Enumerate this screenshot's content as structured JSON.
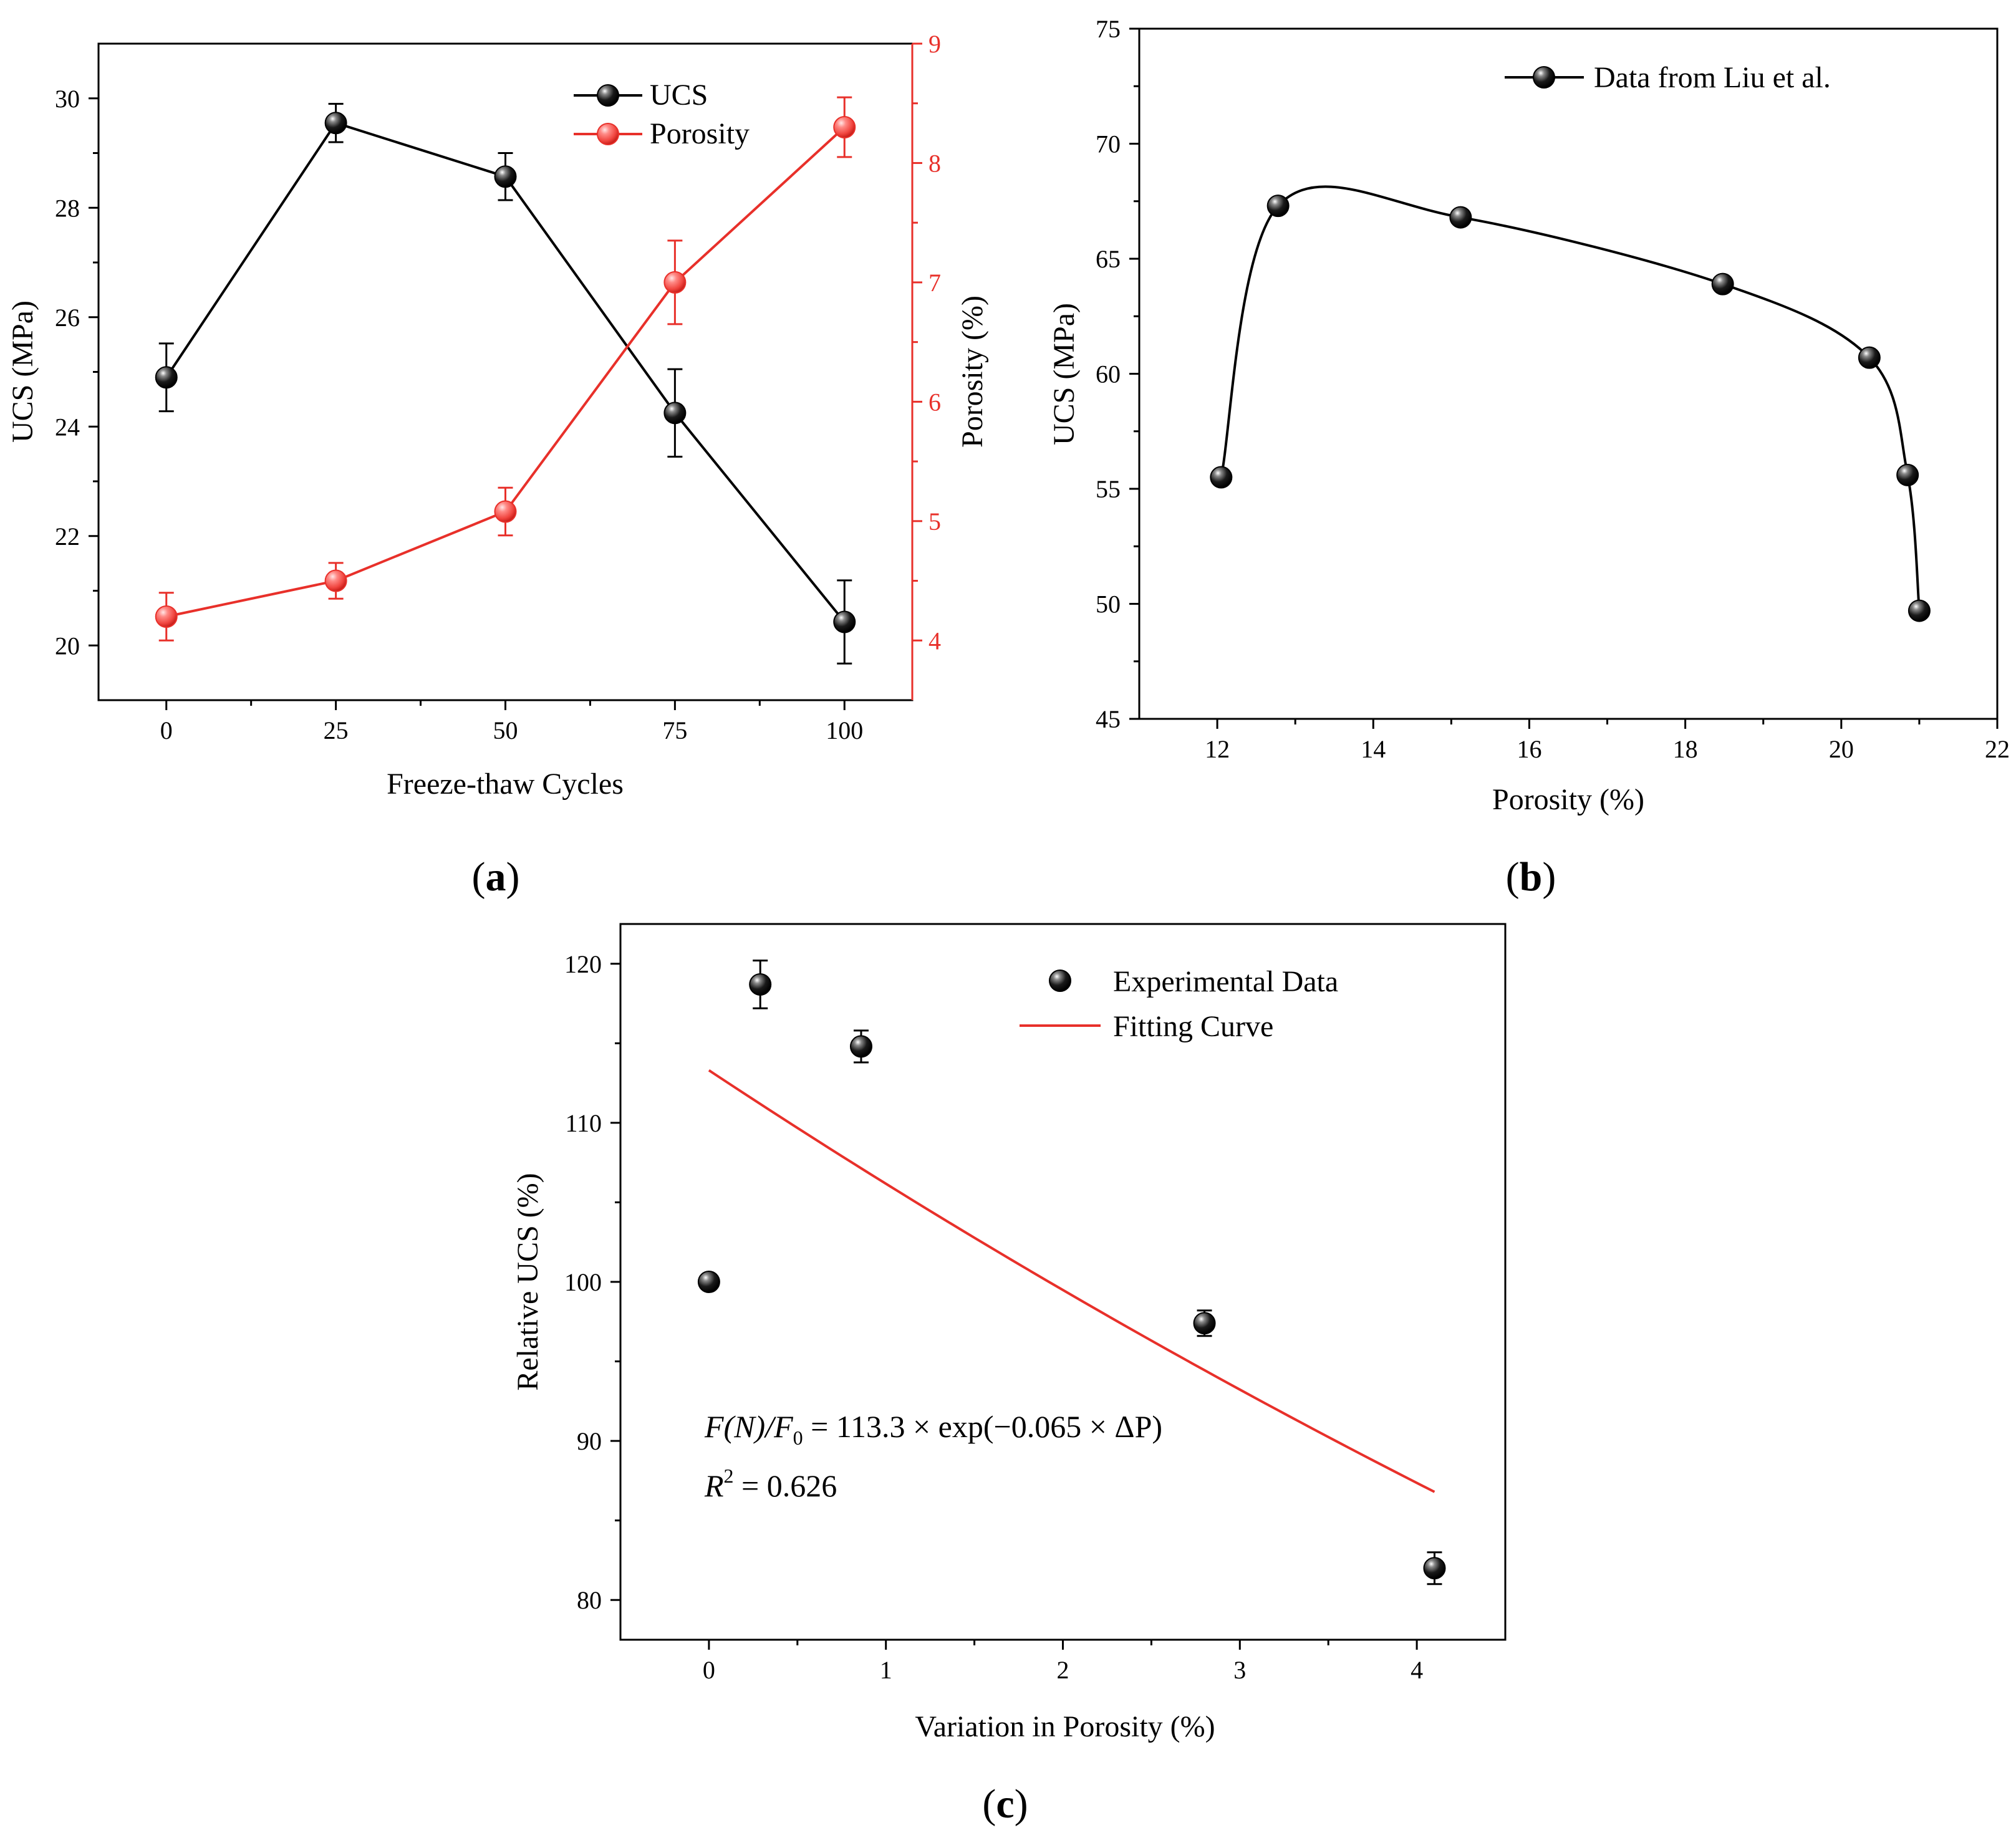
{
  "colors": {
    "black": "#000000",
    "red": "#e8302a",
    "ucs": "#000000",
    "porosity": "#e8302a",
    "fit": "#e8302a"
  },
  "panels": {
    "a": {
      "label_open": "(",
      "label_letter": "a",
      "label_close": ")"
    },
    "b": {
      "label_open": "(",
      "label_letter": "b",
      "label_close": ")"
    },
    "c": {
      "label_open": "(",
      "label_letter": "c",
      "label_close": ")"
    }
  },
  "chart_data": [
    {
      "id": "a",
      "type": "line",
      "xlabel": "Freeze-thaw Cycles",
      "ylabel": "UCS (MPa)",
      "y2label": "Porosity (%)",
      "xlim": [
        -10,
        110
      ],
      "xticks": [
        0,
        25,
        50,
        75,
        100
      ],
      "xtick_labels": [
        "0",
        "25",
        "50",
        "75",
        "100"
      ],
      "ylim": [
        19,
        31
      ],
      "yticks": [
        20,
        22,
        24,
        26,
        28,
        30
      ],
      "ytick_labels": [
        "20",
        "22",
        "24",
        "26",
        "28",
        "30"
      ],
      "y2lim": [
        3.5,
        9
      ],
      "y2ticks": [
        4,
        5,
        6,
        7,
        8,
        9
      ],
      "y2tick_labels": [
        "4",
        "5",
        "6",
        "7",
        "8",
        "9"
      ],
      "legend_position": "top-right",
      "series": [
        {
          "name": "UCS",
          "axis": "left",
          "color": "#000000",
          "x": [
            0,
            25,
            50,
            75,
            100
          ],
          "y": [
            24.9,
            29.55,
            28.57,
            24.25,
            20.43
          ],
          "err": [
            0.62,
            0.35,
            0.43,
            0.8,
            0.76
          ]
        },
        {
          "name": "Porosity",
          "axis": "right",
          "color": "#e8302a",
          "x": [
            0,
            25,
            50,
            75,
            100
          ],
          "y": [
            4.2,
            4.5,
            5.08,
            7.0,
            8.3
          ],
          "err": [
            0.2,
            0.15,
            0.2,
            0.35,
            0.25
          ]
        }
      ]
    },
    {
      "id": "b",
      "type": "line",
      "xlabel": "Porosity (%)",
      "ylabel": "UCS (MPa)",
      "xlim": [
        11,
        22
      ],
      "xticks": [
        12,
        14,
        16,
        18,
        20,
        22
      ],
      "xtick_labels": [
        "12",
        "14",
        "16",
        "18",
        "20",
        "22"
      ],
      "ylim": [
        45,
        75
      ],
      "yticks": [
        45,
        50,
        55,
        60,
        65,
        70,
        75
      ],
      "ytick_labels": [
        "45",
        "50",
        "55",
        "60",
        "65",
        "70",
        "75"
      ],
      "legend_position": "top-right",
      "series": [
        {
          "name": "Data from Liu et al.",
          "color": "#000000",
          "x": [
            12.05,
            12.78,
            15.12,
            18.48,
            20.36,
            20.85,
            21.0
          ],
          "y": [
            55.5,
            67.3,
            66.8,
            63.9,
            60.7,
            55.6,
            49.7
          ]
        }
      ]
    },
    {
      "id": "c",
      "type": "scatter",
      "xlabel": "Variation in Porosity (%)",
      "ylabel": "Relative UCS (%)",
      "xlim": [
        -0.5,
        4.5
      ],
      "xticks": [
        0,
        1,
        2,
        3,
        4
      ],
      "xtick_labels": [
        "0",
        "1",
        "2",
        "3",
        "4"
      ],
      "ylim": [
        77.5,
        122.5
      ],
      "yticks": [
        80,
        90,
        100,
        110,
        120
      ],
      "ytick_labels": [
        "80",
        "90",
        "100",
        "110",
        "120"
      ],
      "legend_position": "top-right",
      "series": [
        {
          "name": "Experimental Data",
          "kind": "points",
          "color": "#000000",
          "x": [
            0,
            0.29,
            0.86,
            2.8,
            4.1
          ],
          "y": [
            100,
            118.7,
            114.8,
            97.4,
            82.0
          ],
          "err": [
            0,
            1.5,
            1.0,
            0.8,
            1.0
          ]
        },
        {
          "name": "Fitting Curve",
          "kind": "fit",
          "color": "#e8302a",
          "equation": "F(N)/F0 = 113.3 × exp(−0.065 × ΔP)",
          "a": 113.3,
          "b": -0.065,
          "x_range": [
            0,
            4.1
          ]
        }
      ],
      "annotations": {
        "eq_left": "F(N)/F",
        "eq_sub": "0",
        "eq_right": " = 113.3 × exp(−0.065 × ΔP)",
        "r2_left": "R",
        "r2_sup": "2",
        "r2_right": " = 0.626"
      }
    }
  ]
}
